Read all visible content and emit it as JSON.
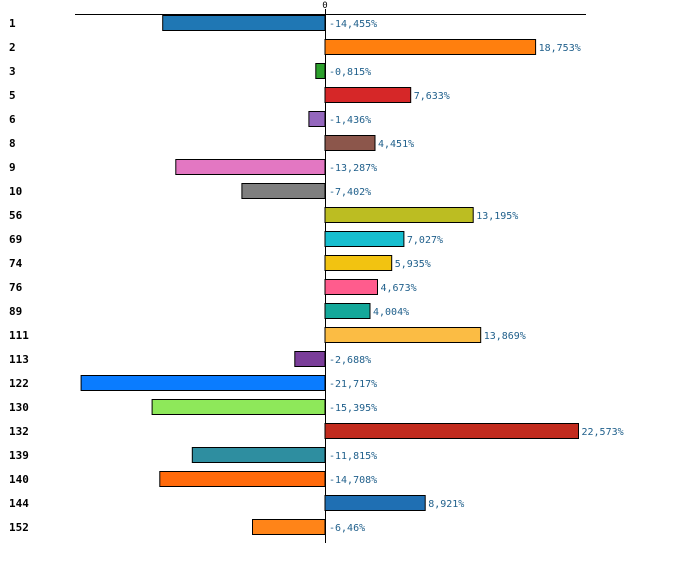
{
  "chart_data": {
    "type": "bar",
    "orientation": "horizontal",
    "title": "",
    "xlabel": "",
    "ylabel": "",
    "zero_tick_label": "0",
    "xlim": [
      -22.5,
      23.5
    ],
    "categories": [
      "1",
      "2",
      "3",
      "5",
      "6",
      "8",
      "9",
      "10",
      "56",
      "69",
      "74",
      "76",
      "89",
      "111",
      "113",
      "122",
      "130",
      "132",
      "139",
      "140",
      "144",
      "152"
    ],
    "values": [
      -14.455,
      18.753,
      -0.815,
      7.633,
      -1.436,
      4.451,
      -13.287,
      -7.402,
      13.195,
      7.027,
      5.935,
      4.673,
      4.004,
      13.869,
      -2.688,
      -21.717,
      -15.395,
      22.573,
      -11.815,
      -14.708,
      8.921,
      -6.46
    ],
    "value_labels": [
      "-14,455%",
      "18,753%",
      "-0,815%",
      "7,633%",
      "-1,436%",
      "4,451%",
      "-13,287%",
      "-7,402%",
      "13,195%",
      "7,027%",
      "5,935%",
      "4,673%",
      "4,004%",
      "13,869%",
      "-2,688%",
      "-21,717%",
      "-15,395%",
      "22,573%",
      "-11,815%",
      "-14,708%",
      "8,921%",
      "-6,46%"
    ],
    "colors": [
      "#1f77b4",
      "#ff7f0e",
      "#2ca02c",
      "#d62728",
      "#9467bd",
      "#8c564b",
      "#e377c2",
      "#7f7f7f",
      "#bcbd22",
      "#17becf",
      "#f2c311",
      "#ff5c8d",
      "#14a89a",
      "#fbbc44",
      "#7a3d99",
      "#0a7cff",
      "#8ee85a",
      "#c22b1e",
      "#2e8ea0",
      "#ff6a0b",
      "#1f6fb3",
      "#ff8418"
    ],
    "value_label_color": "#1f5f8b",
    "grid": false,
    "legend": "none"
  }
}
